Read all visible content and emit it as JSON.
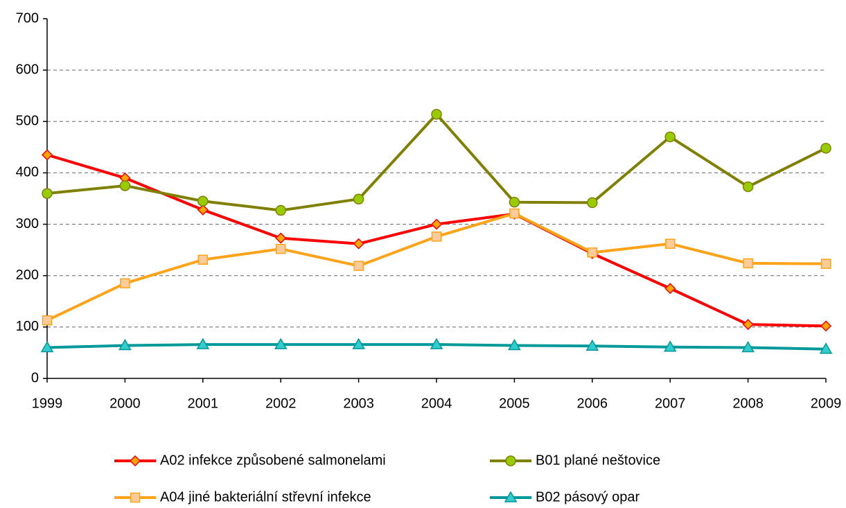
{
  "chart_data": {
    "type": "line",
    "categories": [
      "1999",
      "2000",
      "2001",
      "2002",
      "2003",
      "2004",
      "2005",
      "2006",
      "2007",
      "2008",
      "2009"
    ],
    "series": [
      {
        "name": "A02 infekce způsobené salmonelami",
        "color": "#ff0000",
        "marker": "diamond",
        "marker_fill": "#ffa500",
        "values": [
          435,
          390,
          328,
          273,
          262,
          300,
          320,
          243,
          175,
          105,
          102
        ]
      },
      {
        "name": "B01 plané neštovice",
        "color": "#808000",
        "marker": "circle",
        "marker_fill": "#99cc00",
        "values": [
          360,
          375,
          345,
          327,
          349,
          514,
          343,
          342,
          470,
          373,
          448
        ]
      },
      {
        "name": "A04 jiné bakteriální střevní infekce",
        "color": "#ffa31a",
        "marker": "square",
        "marker_fill": "#ffcc99",
        "values": [
          113,
          185,
          231,
          252,
          219,
          276,
          321,
          245,
          262,
          224,
          223
        ]
      },
      {
        "name": "B02 pásový opar",
        "color": "#009999",
        "marker": "triangle",
        "marker_fill": "#33cccc",
        "values": [
          60,
          64,
          66,
          66,
          66,
          66,
          64,
          63,
          61,
          60,
          57
        ]
      }
    ],
    "ylim": [
      0,
      700
    ],
    "yticks": [
      0,
      100,
      200,
      300,
      400,
      500,
      600,
      700
    ],
    "grid": true,
    "legend": "bottom"
  }
}
